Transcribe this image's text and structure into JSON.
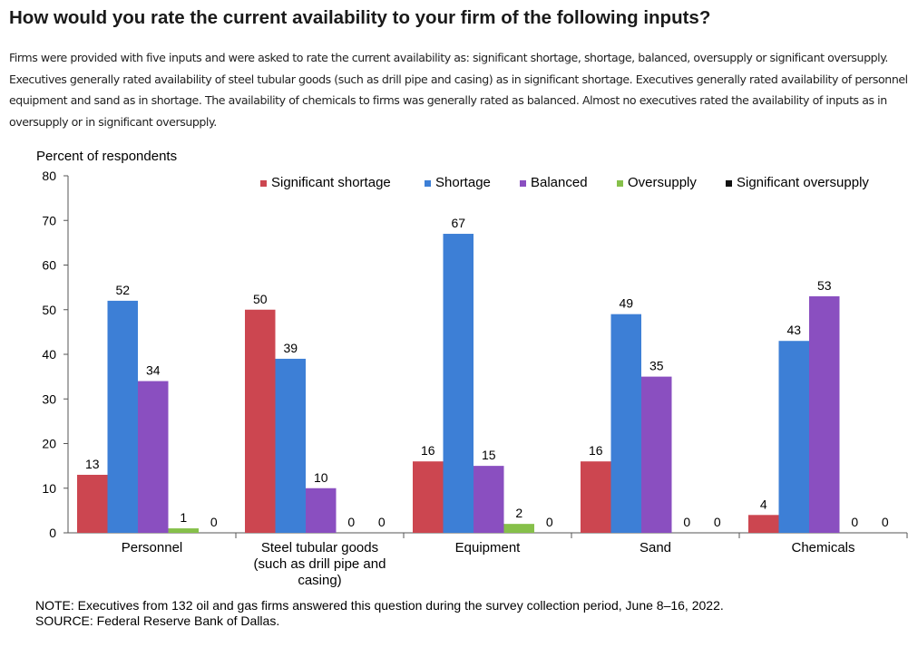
{
  "page": {
    "title": "How would you rate the current availability to your firm of the following inputs?",
    "description": "Firms were provided with five inputs and were asked to rate the current availability as: significant shortage, shortage, balanced, oversupply or significant oversupply. Executives generally rated availability of steel tubular goods (such as drill pipe and casing) as in significant shortage. Executives generally rated availability of personnel, equipment and sand as in shortage. The availability of chemicals to firms was generally rated as balanced. Almost no executives rated the availability of inputs as in oversupply or in significant oversupply.",
    "note": "NOTE:  Executives  from 132 oil and gas firms answered this question during the survey collection period, June 8–16, 2022.",
    "source": "SOURCE:  Federal Reserve Bank of Dallas."
  },
  "chart_data": {
    "type": "bar",
    "ylabel": "Percent of respondents",
    "ylim": [
      0,
      80
    ],
    "yticks": [
      0,
      10,
      20,
      30,
      40,
      50,
      60,
      70,
      80
    ],
    "grid": false,
    "legend_position": "top-right",
    "categories": [
      [
        "Personnel"
      ],
      [
        "Steel tubular goods",
        "(such as drill pipe and",
        "casing)"
      ],
      [
        "Equipment"
      ],
      [
        "Sand"
      ],
      [
        "Chemicals"
      ]
    ],
    "series": [
      {
        "name": "Significant shortage",
        "color": "#cc4650",
        "values": [
          13,
          50,
          16,
          16,
          4
        ],
        "labels": [
          "13",
          "50",
          "16",
          "16",
          "4"
        ]
      },
      {
        "name": "Shortage",
        "color": "#3d7fd6",
        "values": [
          52,
          39,
          67,
          49,
          43
        ],
        "labels": [
          "52",
          "39",
          "67",
          "49",
          "43"
        ]
      },
      {
        "name": "Balanced",
        "color": "#8a4fc0",
        "values": [
          34,
          10,
          15,
          35,
          53
        ],
        "labels": [
          "34",
          "10",
          "15",
          "35",
          "53"
        ]
      },
      {
        "name": "Oversupply",
        "color": "#86c04a",
        "values": [
          1,
          0,
          2,
          0,
          0
        ],
        "labels": [
          "1",
          "0",
          "2",
          "0",
          "0"
        ]
      },
      {
        "name": "Significant oversupply",
        "color": "#111111",
        "values": [
          0,
          0,
          0,
          0,
          0
        ],
        "labels": [
          "0",
          "0",
          "0",
          "0",
          "0"
        ]
      }
    ]
  }
}
